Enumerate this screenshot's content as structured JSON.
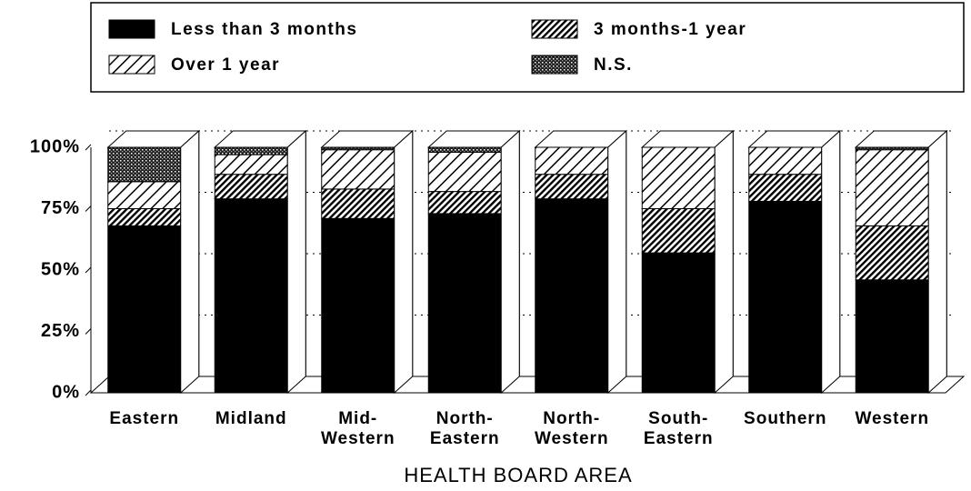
{
  "chart_data": {
    "type": "stacked-bar-3d",
    "xlabel": "HEALTH BOARD AREA",
    "categories": [
      "Eastern",
      "Midland",
      "Mid-\nWestern",
      "North-\nEastern",
      "North-\nWestern",
      "South-\nEastern",
      "Southern",
      "Western"
    ],
    "series": [
      {
        "name": "Less than 3 months",
        "color": "#000000",
        "pattern": "solid",
        "values": [
          68,
          79,
          71,
          73,
          79,
          57,
          78,
          46
        ]
      },
      {
        "name": "3 months-1 year",
        "color": "#000000",
        "pattern": "dense-hatch",
        "values": [
          7,
          10,
          12,
          9,
          10,
          18,
          11,
          22
        ]
      },
      {
        "name": "Over 1 year",
        "color": "#000000",
        "pattern": "hatch",
        "values": [
          11,
          8,
          16,
          16,
          11,
          25,
          11,
          31
        ]
      },
      {
        "name": "N.S.",
        "color": "#000000",
        "pattern": "dots",
        "values": [
          14,
          3,
          1,
          2,
          0,
          0,
          0,
          1
        ]
      }
    ],
    "ylim": [
      0,
      100
    ],
    "yticks": [
      {
        "value": 0,
        "label": "0%"
      },
      {
        "value": 25,
        "label": "25%"
      },
      {
        "value": 50,
        "label": "50%"
      },
      {
        "value": 75,
        "label": "75%"
      },
      {
        "value": 100,
        "label": "100%"
      }
    ],
    "grid": true,
    "legend": "top"
  }
}
